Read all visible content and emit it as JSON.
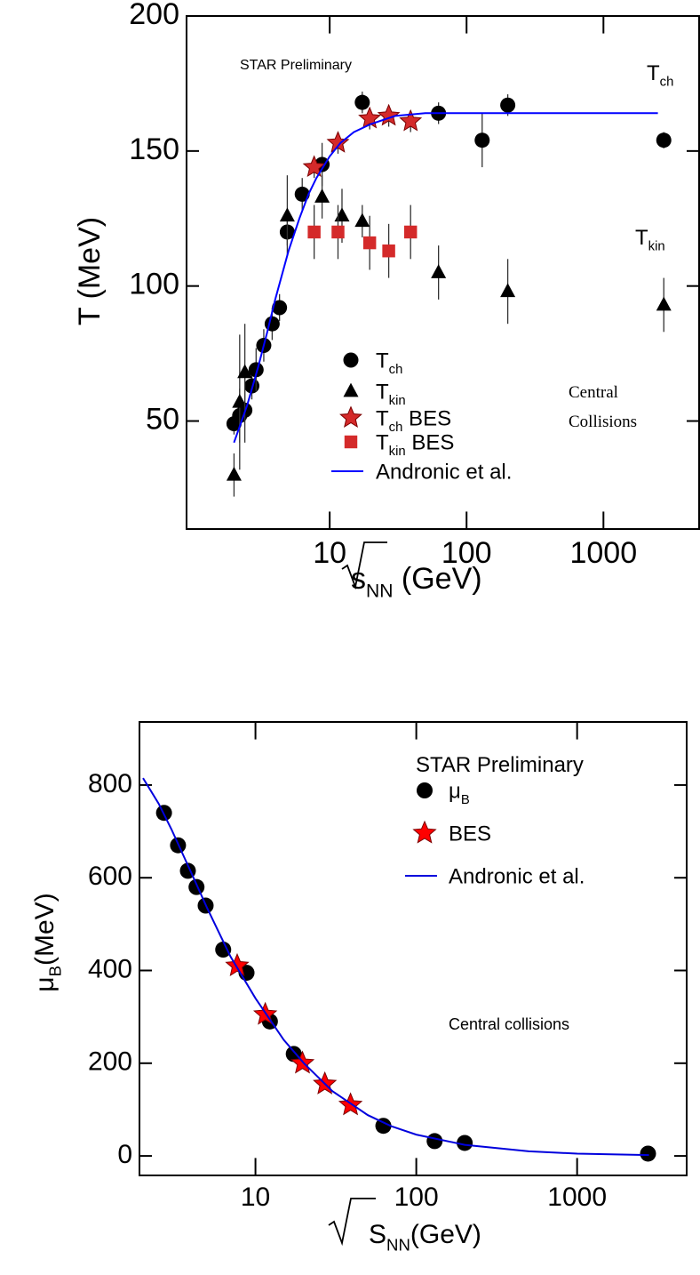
{
  "chart_data": [
    {
      "type": "scatter",
      "xscale": "log",
      "xlim": [
        0.9,
        5000
      ],
      "ylim": [
        10,
        200
      ],
      "xticks": [
        10,
        100,
        1000
      ],
      "yticks": [
        50,
        100,
        150,
        200
      ],
      "ylabel": "T (MeV)",
      "xlabel": {
        "text": "s",
        "sub": "NN",
        "suffix": " (GeV)"
      },
      "annotations": [
        {
          "text": "STAR Preliminary"
        },
        {
          "text": "T",
          "sub": "ch"
        },
        {
          "text": "T",
          "sub": "kin"
        },
        {
          "text": "Central"
        },
        {
          "text": "Collisions"
        }
      ],
      "series": [
        {
          "name": {
            "text": "T",
            "sub": "ch"
          },
          "marker": "circle",
          "color": "#000000",
          "x": [
            2,
            2.2,
            2.4,
            2.7,
            2.9,
            3.3,
            3.8,
            4.3,
            4.9,
            6.3,
            8.8,
            17.3,
            62.4,
            130,
            200,
            2760
          ],
          "values": [
            49,
            52,
            54,
            63,
            69,
            78,
            86,
            92,
            120,
            134,
            145,
            168,
            164,
            154,
            167,
            154
          ],
          "errors": [
            4,
            10,
            12,
            5,
            8,
            6,
            6,
            5,
            5,
            6,
            8,
            4,
            4,
            10,
            4,
            3
          ]
        },
        {
          "name": {
            "text": "T",
            "sub": "kin"
          },
          "marker": "triangle",
          "color": "#000000",
          "x": [
            2,
            2.2,
            2.4,
            4.9,
            8.8,
            12.3,
            17.3,
            62.4,
            200,
            2760
          ],
          "values": [
            30,
            57,
            68,
            126,
            133,
            126,
            124,
            105,
            98,
            93
          ],
          "errors": [
            8,
            25,
            18,
            15,
            8,
            10,
            6,
            10,
            12,
            10
          ]
        },
        {
          "name": {
            "text": "T",
            "sub": "ch",
            "suffix": " BES"
          },
          "marker": "star",
          "color": "#d42a2a",
          "x": [
            7.7,
            11.5,
            19.6,
            27,
            39
          ],
          "values": [
            144,
            153,
            162,
            163,
            161
          ],
          "errors": [
            4,
            4,
            4,
            4,
            4
          ]
        },
        {
          "name": {
            "text": "T",
            "sub": "kin",
            "suffix": " BES"
          },
          "marker": "square",
          "color": "#d42a2a",
          "x": [
            7.7,
            11.5,
            19.6,
            27,
            39
          ],
          "values": [
            120,
            120,
            116,
            113,
            120
          ],
          "errors": [
            10,
            10,
            10,
            10,
            10
          ]
        },
        {
          "name": {
            "text": "Andronic et al."
          },
          "marker": "line",
          "color": "#0000ff",
          "x": [
            2,
            2.5,
            3,
            3.5,
            4,
            5,
            6,
            7,
            8,
            10,
            12,
            15,
            20,
            30,
            50,
            100,
            2500
          ],
          "values": [
            42,
            56,
            70,
            83,
            95,
            113,
            125,
            134,
            140,
            148,
            153,
            157,
            160,
            163,
            164,
            164,
            164
          ]
        }
      ]
    },
    {
      "type": "scatter",
      "xscale": "log",
      "xlim": [
        1.9,
        4800
      ],
      "ylim": [
        -42,
        936
      ],
      "xticks": [
        10,
        100,
        1000
      ],
      "yticks": [
        0,
        200,
        400,
        600,
        800
      ],
      "ylabel": {
        "text": "μ",
        "sub": "B",
        "suffix": "(MeV)"
      },
      "xlabel": {
        "text": "S",
        "sub": "NN",
        "suffix": "(GeV)"
      },
      "annotations": [
        {
          "text": "STAR Preliminary"
        },
        {
          "text": "Central collisions"
        }
      ],
      "series": [
        {
          "name": {
            "text": "μ",
            "sub": "B"
          },
          "marker": "circle",
          "color": "#000000",
          "x": [
            2.7,
            3.3,
            3.8,
            4.3,
            4.9,
            6.3,
            8.8,
            12.3,
            17.3,
            62.4,
            130,
            200,
            2760
          ],
          "values": [
            740,
            670,
            615,
            580,
            540,
            445,
            395,
            290,
            220,
            65,
            32,
            28,
            5
          ]
        },
        {
          "name": {
            "text": "BES"
          },
          "marker": "star",
          "color": "#ff0000",
          "x": [
            7.7,
            11.5,
            19.6,
            27,
            39
          ],
          "values": [
            410,
            305,
            200,
            155,
            110
          ]
        },
        {
          "name": {
            "text": "Andronic et al."
          },
          "marker": "line",
          "color": "#0000dd",
          "x": [
            2,
            2.5,
            3,
            4,
            5,
            7,
            10,
            15,
            20,
            30,
            50,
            70,
            100,
            200,
            500,
            1000,
            2800
          ],
          "values": [
            815,
            760,
            705,
            610,
            535,
            430,
            340,
            250,
            200,
            140,
            88,
            64,
            46,
            24,
            10,
            5,
            2
          ]
        }
      ]
    }
  ]
}
